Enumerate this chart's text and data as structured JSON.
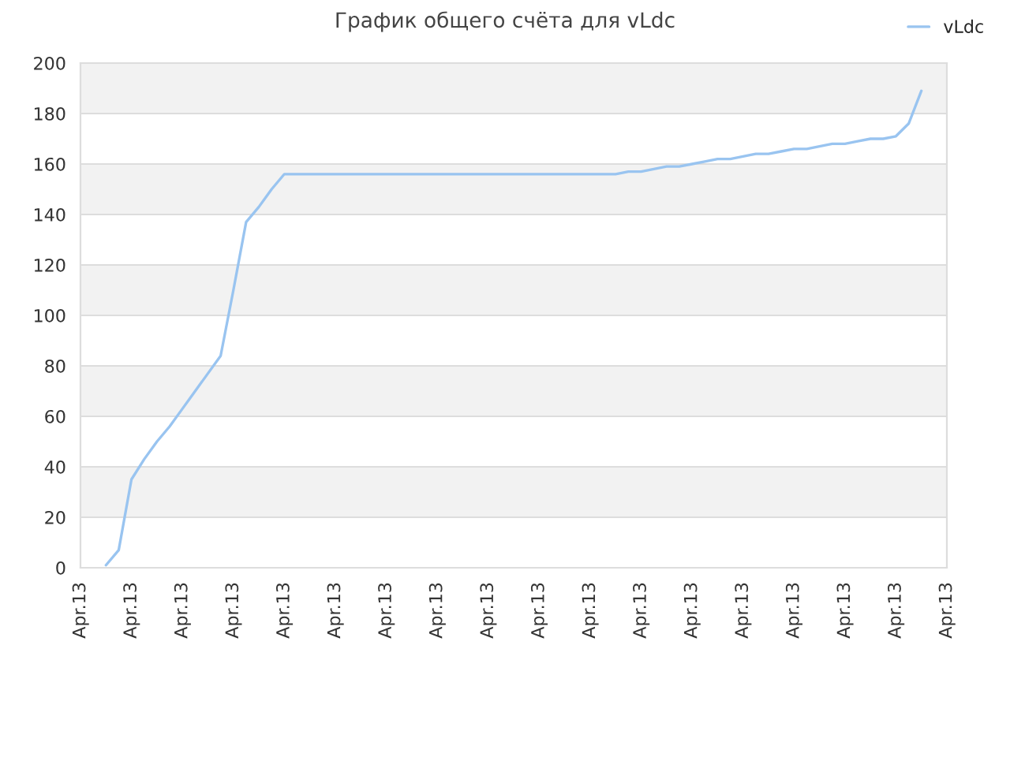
{
  "chart_data": {
    "type": "line",
    "title": "График общего счёта для vLdc",
    "categories": [
      "Apr.13",
      null,
      null,
      null,
      "Apr.13",
      null,
      null,
      null,
      "Apr.13",
      null,
      null,
      null,
      "Apr.13",
      null,
      null,
      null,
      "Apr.13",
      null,
      null,
      null,
      "Apr.13",
      null,
      null,
      null,
      "Apr.13",
      null,
      null,
      null,
      "Apr.13",
      null,
      null,
      null,
      "Apr.13",
      null,
      null,
      null,
      "Apr.13",
      null,
      null,
      null,
      "Apr.13",
      null,
      null,
      null,
      "Apr.13",
      null,
      null,
      null,
      "Apr.13",
      null,
      null,
      null,
      "Apr.13",
      null,
      null,
      null,
      "Apr.13",
      null,
      null,
      null,
      "Apr.13",
      null,
      null,
      null,
      "Apr.13",
      null,
      null,
      null,
      "Apr.13"
    ],
    "series": [
      {
        "name": "vLdc",
        "color": "#99c4f0",
        "values": [
          null,
          null,
          1,
          7,
          35,
          43,
          50,
          56,
          63,
          70,
          77,
          84,
          110,
          137,
          143,
          150,
          156,
          156,
          156,
          156,
          156,
          156,
          156,
          156,
          156,
          156,
          156,
          156,
          156,
          156,
          156,
          156,
          156,
          156,
          156,
          156,
          156,
          156,
          156,
          156,
          156,
          156,
          156,
          157,
          157,
          158,
          159,
          159,
          160,
          161,
          162,
          162,
          163,
          164,
          164,
          165,
          166,
          166,
          167,
          168,
          168,
          169,
          170,
          170,
          171,
          176,
          189,
          null,
          null
        ]
      }
    ],
    "ylim": [
      0,
      200
    ],
    "yticks": [
      0,
      20,
      40,
      60,
      80,
      100,
      120,
      140,
      160,
      180,
      200
    ],
    "grid": "y",
    "legend": "top right",
    "marker": "none",
    "line_style": "solid"
  }
}
